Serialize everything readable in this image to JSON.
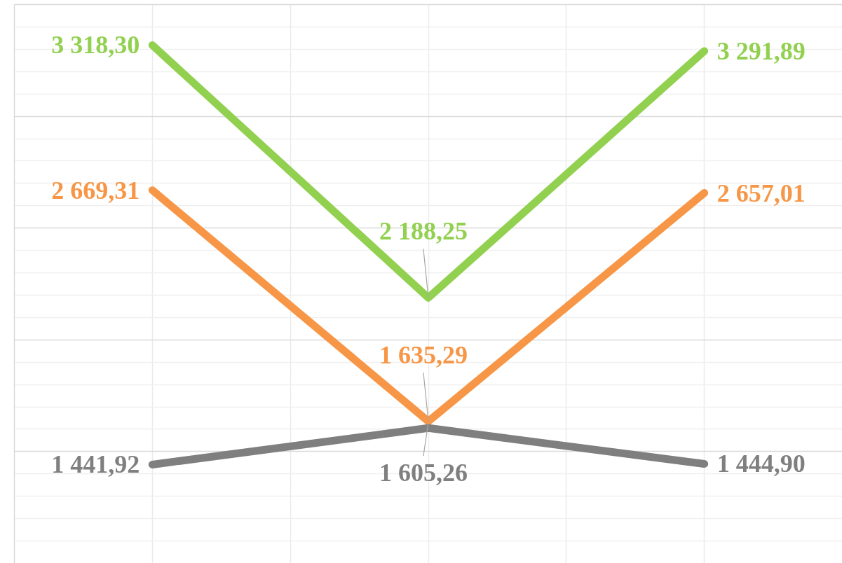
{
  "chart_data": {
    "type": "line",
    "categories": [
      null,
      null,
      null
    ],
    "series": [
      {
        "color": "#92d050",
        "values": [
          3318.3,
          2188.25,
          3291.89
        ],
        "value_labels": [
          "3 318,30",
          "2 188,25",
          "3 291,89"
        ]
      },
      {
        "color": "#f79646",
        "values": [
          2669.31,
          1635.29,
          2657.01
        ],
        "value_labels": [
          "2 669,31",
          "1 635,29",
          "2 657,01"
        ]
      },
      {
        "color": "#7f7f7f",
        "values": [
          1441.92,
          1605.26,
          1444.9
        ],
        "value_labels": [
          "1 441,92",
          "1 605,26",
          "1 444,90"
        ]
      }
    ],
    "ylim": [
      1000,
      3500
    ],
    "yticks": [
      1500,
      2000,
      2500,
      3000
    ],
    "grid": true,
    "tick_labels": false,
    "marker": "none",
    "line_style": "solid"
  }
}
